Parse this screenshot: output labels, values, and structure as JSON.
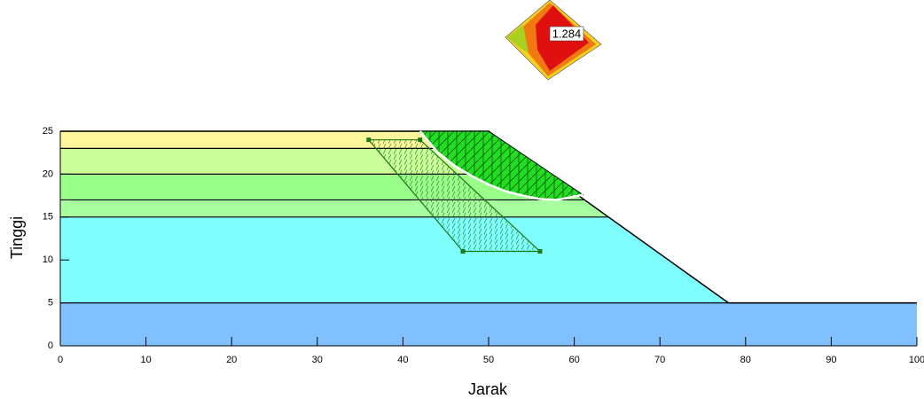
{
  "chart_data": {
    "type": "slope",
    "xlabel": "Jarak",
    "ylabel": "Tinggi",
    "xlim": [
      0,
      100
    ],
    "ylim": [
      0,
      25
    ],
    "xticks": [
      0,
      10,
      20,
      30,
      40,
      50,
      60,
      70,
      80,
      90,
      100
    ],
    "yticks": [
      0,
      5,
      10,
      15,
      20,
      25
    ],
    "surface": {
      "x": [
        0,
        50,
        78,
        100
      ],
      "y": [
        25,
        25,
        5,
        5
      ]
    },
    "layers": [
      {
        "top": 25,
        "color": "#fff59a"
      },
      {
        "top": 23,
        "color": "#ccff99"
      },
      {
        "top": 20,
        "color": "#99ff88"
      },
      {
        "top": 17,
        "color": "#a8ffa0"
      },
      {
        "top": 15,
        "color": "#80ffff"
      },
      {
        "top": 5,
        "color": "#80c0ff"
      }
    ],
    "slip_surface": {
      "x": [
        42,
        44,
        46,
        48,
        50,
        52,
        54,
        56,
        58,
        61
      ],
      "y": [
        25,
        22.6,
        21,
        19.8,
        18.8,
        18,
        17.5,
        17.1,
        17,
        17.6
      ]
    },
    "search_grid": {
      "x": [
        36,
        42,
        56,
        47
      ],
      "y": [
        24,
        24,
        11,
        11
      ]
    },
    "factor_of_safety": 1.284
  }
}
